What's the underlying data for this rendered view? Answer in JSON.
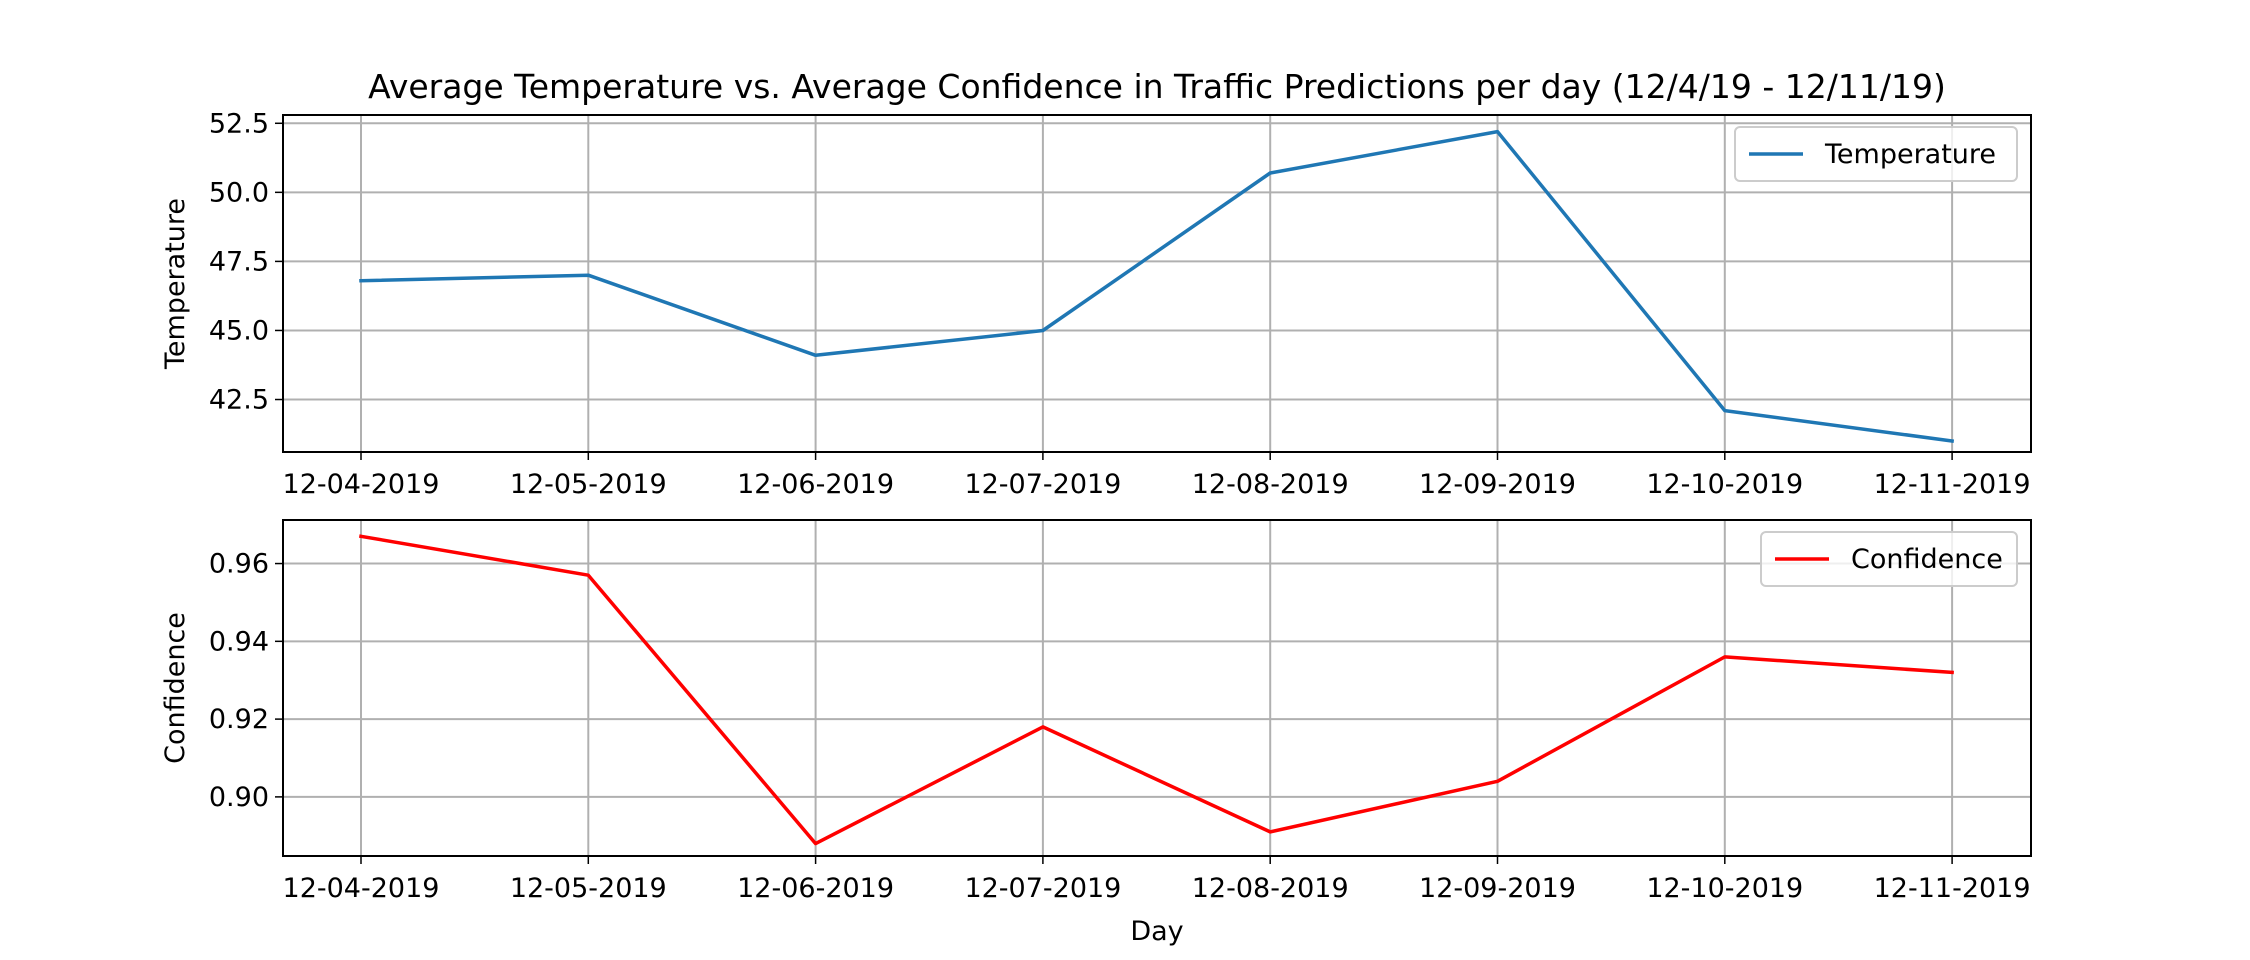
{
  "chart_data": [
    {
      "type": "line",
      "title": "Average Temperature vs. Average Confidence in Traffic Predictions per day (12/4/19 - 12/11/19)",
      "xlabel": "",
      "ylabel": "Temperature",
      "categories": [
        "12-04-2019",
        "12-05-2019",
        "12-06-2019",
        "12-07-2019",
        "12-08-2019",
        "12-09-2019",
        "12-10-2019",
        "12-11-2019"
      ],
      "yticks": [
        "42.5",
        "45.0",
        "47.5",
        "50.0",
        "52.5"
      ],
      "ylim": [
        40.6,
        52.8
      ],
      "grid": true,
      "legend_position": "upper right",
      "series": [
        {
          "name": "Temperature",
          "color": "#1f77b4",
          "values": [
            46.8,
            47.0,
            44.1,
            45.0,
            50.7,
            52.2,
            42.1,
            41.0
          ]
        }
      ]
    },
    {
      "type": "line",
      "title": "",
      "xlabel": "Day",
      "ylabel": "Confidence",
      "categories": [
        "12-04-2019",
        "12-05-2019",
        "12-06-2019",
        "12-07-2019",
        "12-08-2019",
        "12-09-2019",
        "12-10-2019",
        "12-11-2019"
      ],
      "yticks": [
        "0.90",
        "0.92",
        "0.94",
        "0.96"
      ],
      "ylim": [
        0.8848,
        0.9712
      ],
      "grid": true,
      "legend_position": "upper right",
      "series": [
        {
          "name": "Confidence",
          "color": "#ff0000",
          "values": [
            0.967,
            0.957,
            0.888,
            0.918,
            0.891,
            0.904,
            0.936,
            0.932
          ]
        }
      ]
    }
  ]
}
